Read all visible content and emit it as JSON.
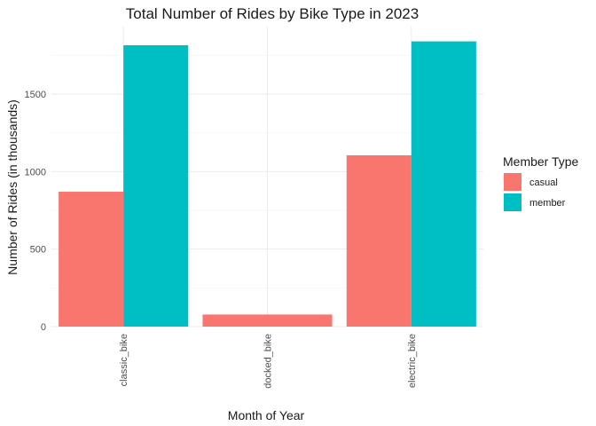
{
  "chart_data": {
    "type": "bar",
    "title": "Total Number of Rides by Bike Type in 2023",
    "xlabel": "Month of Year",
    "ylabel": "Number of Rides (in thousands)",
    "categories": [
      "classic_bike",
      "docked_bike",
      "electric_bike"
    ],
    "series": [
      {
        "name": "casual",
        "color": "#F8766D",
        "values": [
          870,
          78,
          1105
        ]
      },
      {
        "name": "member",
        "color": "#00BFC4",
        "values": [
          1815,
          null,
          1840
        ]
      }
    ],
    "ylim": [
      0,
      1900
    ],
    "yticks": [
      0,
      500,
      1000,
      1500
    ],
    "grid": true,
    "legend": {
      "title": "Member Type",
      "position": "right"
    }
  }
}
